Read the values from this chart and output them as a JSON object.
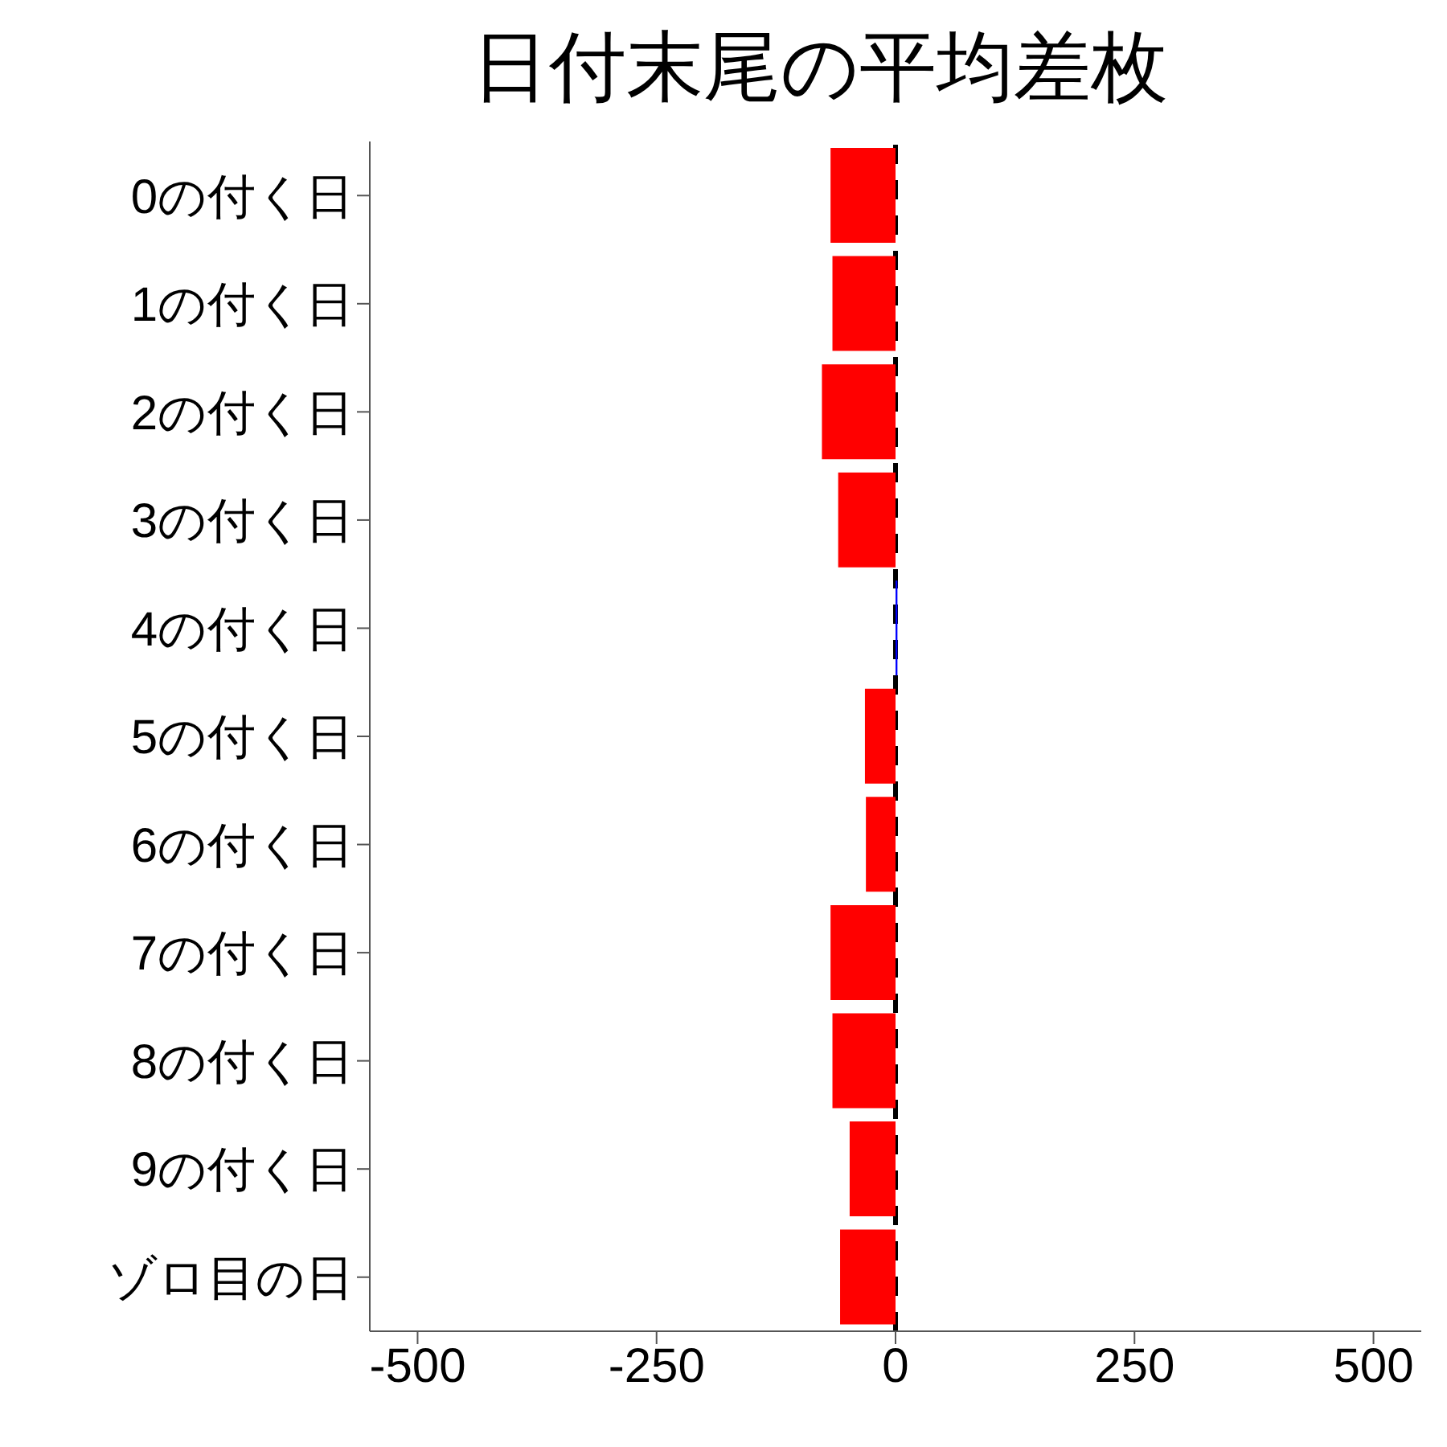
{
  "chart_data": {
    "type": "bar",
    "orientation": "horizontal",
    "title": "日付末尾の平均差枚",
    "categories": [
      "0の付く日",
      "1の付く日",
      "2の付く日",
      "3の付く日",
      "4の付く日",
      "5の付く日",
      "6の付く日",
      "7の付く日",
      "8の付く日",
      "9の付く日",
      "ゾロ目の日"
    ],
    "values": [
      -68,
      -66,
      -77,
      -60,
      2,
      -32,
      -31,
      -68,
      -66,
      -48,
      -58
    ],
    "colors": [
      "#ff0000",
      "#ff0000",
      "#ff0000",
      "#ff0000",
      "#0000ff",
      "#ff0000",
      "#ff0000",
      "#ff0000",
      "#ff0000",
      "#ff0000",
      "#ff0000"
    ],
    "xlim": [
      -550,
      550
    ],
    "xticks": [
      -500,
      -250,
      0,
      250,
      500
    ],
    "ref_lines": [
      {
        "axis": "x",
        "value": 0,
        "color": "#000000",
        "line_style": "dashed"
      }
    ],
    "grid": false,
    "legend": false
  }
}
